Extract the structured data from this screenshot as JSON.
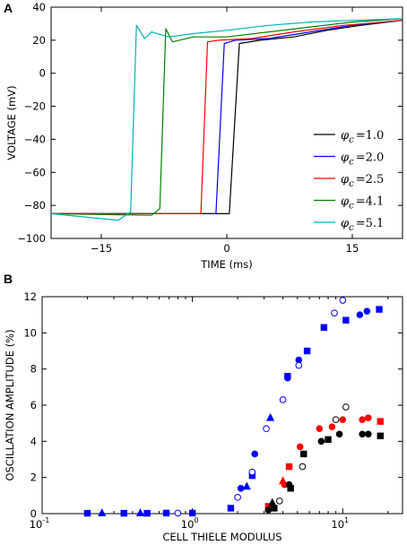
{
  "figure": {
    "panels": [
      "A",
      "B"
    ]
  },
  "chart_data": [
    {
      "panel": "A",
      "type": "line",
      "xlabel": "TIME (ms)",
      "ylabel": "VOLTAGE (mV)",
      "xlim": [
        -21,
        21
      ],
      "ylim": [
        -100,
        40
      ],
      "xticks": [
        -15,
        0,
        15
      ],
      "yticks": [
        -100,
        -80,
        -60,
        -40,
        -20,
        0,
        20,
        40
      ],
      "legend_position": "lower-right",
      "series": [
        {
          "name": "1.0",
          "color": "#000000",
          "x": [
            -21,
            0.3,
            1.5,
            4,
            8,
            12,
            16,
            21
          ],
          "y": [
            -85,
            -85,
            18,
            20,
            22,
            26,
            29,
            32
          ]
        },
        {
          "name": "2.0",
          "color": "#0000ff",
          "x": [
            -21,
            -1.3,
            -0.3,
            1,
            5,
            10,
            15,
            21
          ],
          "y": [
            -85,
            -85,
            18,
            20,
            21,
            25,
            29,
            32
          ]
        },
        {
          "name": "2.5",
          "color": "#ff0000",
          "x": [
            -21,
            -3.1,
            -2.3,
            -1,
            3,
            8,
            14,
            21
          ],
          "y": [
            -85,
            -85,
            19,
            20,
            21,
            25,
            29,
            32
          ]
        },
        {
          "name": "4.1",
          "color": "#008000",
          "x": [
            -21,
            -9,
            -8,
            -7.3,
            -6.5,
            -4,
            0,
            5,
            10,
            15,
            21
          ],
          "y": [
            -85,
            -86,
            -82,
            27,
            19,
            22,
            22,
            25,
            28,
            31,
            33
          ]
        },
        {
          "name": "5.1",
          "color": "#00b3b3",
          "x": [
            -21,
            -13,
            -11.5,
            -10.8,
            -9.8,
            -9,
            -7,
            -4,
            0,
            5,
            10,
            15,
            21
          ],
          "y": [
            -85,
            -89,
            -84,
            29,
            21,
            25,
            22,
            24,
            26,
            29,
            31,
            32,
            33
          ]
        }
      ],
      "legend_entries": [
        "=1.0",
        "=2.0",
        "=2.5",
        "=4.1",
        "=5.1"
      ],
      "legend_symbol": "φ",
      "legend_subscript": "c"
    },
    {
      "panel": "B",
      "type": "scatter",
      "xlabel": "CELL THIELE MODULUS",
      "ylabel": "OSCILLATION AMPLITUDE (%)",
      "xscale": "log",
      "xlim": [
        0.1,
        25
      ],
      "ylim": [
        0,
        12
      ],
      "xtick_labels": [
        "10",
        "10",
        "10"
      ],
      "xtick_exponents": [
        "-1",
        "0",
        "1"
      ],
      "yticks": [
        0,
        2,
        4,
        6,
        8,
        10,
        12
      ],
      "series": [
        {
          "color": "#0000ff",
          "marker": "square",
          "filled": true,
          "x": [
            0.2,
            0.35,
            0.5,
            0.67,
            1.0,
            1.8,
            2.5,
            4.3,
            5.8,
            7.5,
            10.5,
            17.5
          ],
          "y": [
            0.02,
            0.02,
            0.02,
            0.03,
            0.03,
            0.3,
            2.1,
            7.6,
            9.0,
            10.3,
            10.7,
            11.3
          ]
        },
        {
          "color": "#0000ff",
          "marker": "circle",
          "filled": true,
          "x": [
            2.1,
            2.6,
            4.3,
            5.1,
            13.0,
            14.5
          ],
          "y": [
            1.4,
            3.3,
            7.5,
            8.5,
            11.0,
            11.2
          ]
        },
        {
          "color": "#0000ff",
          "marker": "circle",
          "filled": false,
          "x": [
            0.8,
            2.0,
            2.5,
            3.1,
            4.0,
            5.1,
            8.8,
            10.0
          ],
          "y": [
            0.03,
            0.9,
            2.3,
            4.7,
            6.3,
            8.2,
            11.1,
            11.8
          ]
        },
        {
          "color": "#0000ff",
          "marker": "triangle",
          "filled": true,
          "x": [
            0.25,
            0.45,
            2.3,
            3.3
          ],
          "y": [
            0.03,
            0.03,
            1.5,
            5.3
          ]
        },
        {
          "color": "#ff0000",
          "marker": "square",
          "filled": true,
          "x": [
            3.2,
            4.4,
            17.8
          ],
          "y": [
            0.4,
            2.6,
            5.1
          ]
        },
        {
          "color": "#ff0000",
          "marker": "circle",
          "filled": true,
          "x": [
            4.1,
            5.2,
            7.0,
            8.5,
            10.0,
            13.5,
            14.8
          ],
          "y": [
            1.6,
            3.7,
            4.7,
            4.8,
            5.2,
            5.2,
            5.3
          ]
        },
        {
          "color": "#ff0000",
          "marker": "triangle",
          "filled": true,
          "x": [
            4.0
          ],
          "y": [
            1.8
          ]
        },
        {
          "color": "#000000",
          "marker": "square",
          "filled": true,
          "x": [
            3.5,
            4.5,
            5.5,
            8.0,
            17.8
          ],
          "y": [
            0.3,
            1.4,
            3.3,
            4.1,
            4.3
          ]
        },
        {
          "color": "#000000",
          "marker": "circle",
          "filled": true,
          "x": [
            3.2,
            4.4,
            7.2,
            9.5,
            13.5,
            14.8
          ],
          "y": [
            0.2,
            1.6,
            4.0,
            4.4,
            4.4,
            4.4
          ]
        },
        {
          "color": "#000000",
          "marker": "circle",
          "filled": false,
          "x": [
            3.8,
            5.4,
            9.0,
            10.5
          ],
          "y": [
            0.7,
            2.6,
            5.2,
            5.9
          ]
        },
        {
          "color": "#000000",
          "marker": "triangle",
          "filled": true,
          "x": [
            3.4
          ],
          "y": [
            0.6
          ]
        }
      ]
    }
  ]
}
